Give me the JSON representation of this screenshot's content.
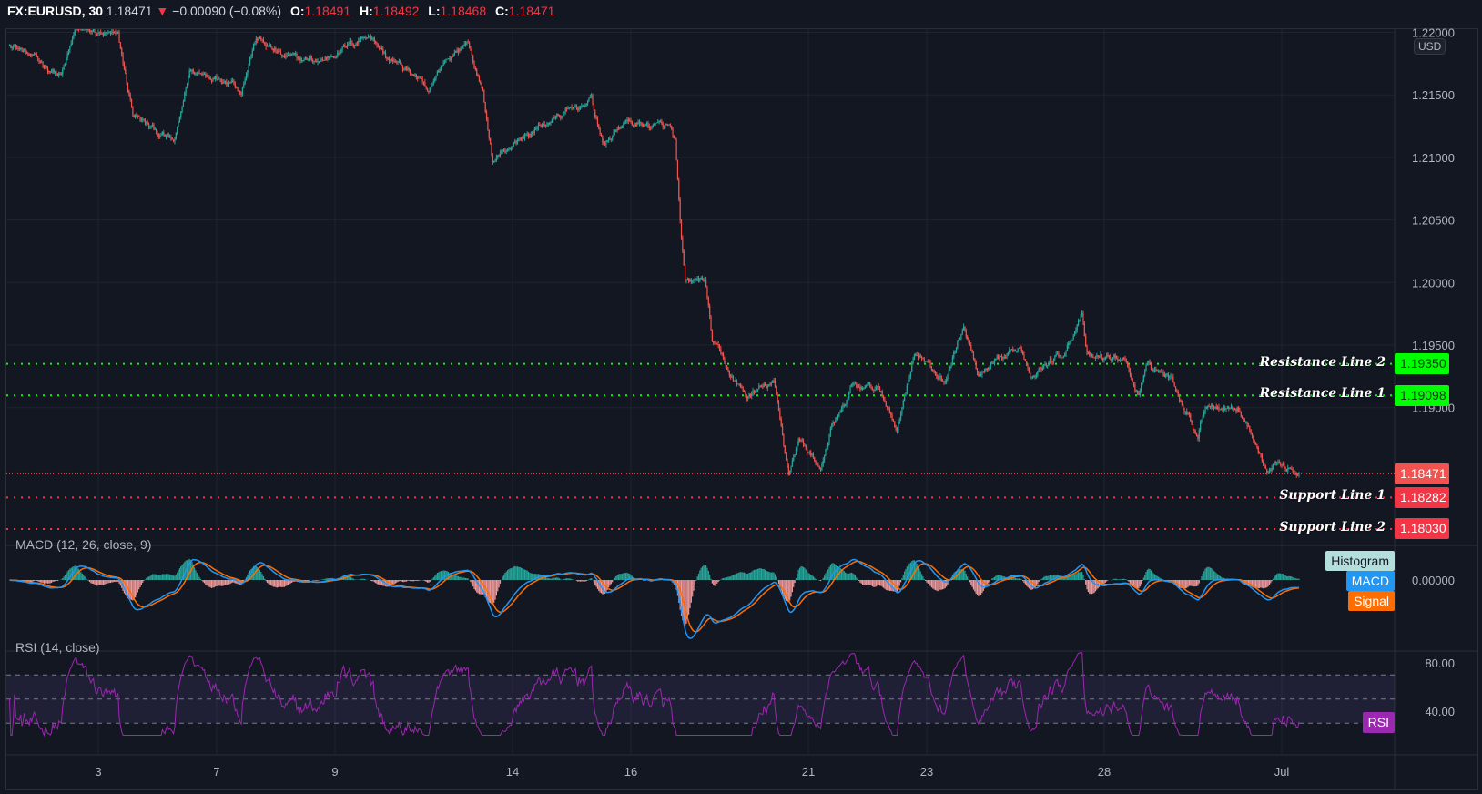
{
  "header": {
    "symbol": "FX:EURUSD, 30",
    "last": "1.18471",
    "change": "−0.00090 (−0.08%)",
    "open_label": "O:",
    "open": "1.18491",
    "high_label": "H:",
    "high": "1.18492",
    "low_label": "L:",
    "low": "1.18468",
    "close_label": "C:",
    "close": "1.18471",
    "direction_icon": "triangle-down-icon"
  },
  "price_axis": {
    "currency": "USD",
    "ticks": [
      "1.22000",
      "1.21500",
      "1.21000",
      "1.20500",
      "1.20000",
      "1.19500",
      "1.19000"
    ]
  },
  "levels": [
    {
      "label": "Resistance Line 2",
      "value": "1.19350",
      "color": "#00ff00",
      "text_color": "#0b3d0b"
    },
    {
      "label": "Resistance Line 1",
      "value": "1.19098",
      "color": "#00ff00",
      "text_color": "#0b3d0b"
    },
    {
      "label": "Support Line 1",
      "value": "1.18282",
      "color": "#f23645",
      "text_color": "#ffffff"
    },
    {
      "label": "Support Line 2",
      "value": "1.18030",
      "color": "#f23645",
      "text_color": "#ffffff"
    }
  ],
  "last_price_tag": {
    "value": "1.18471",
    "color": "#f05350"
  },
  "macd": {
    "title": "MACD (12, 26, close, 9)",
    "zero_label": "0.00000",
    "tags": [
      {
        "label": "Histogram",
        "color": "#b2dfdb",
        "text_color": "#131722"
      },
      {
        "label": "MACD",
        "color": "#2196f3",
        "text_color": "#ffffff"
      },
      {
        "label": "Signal",
        "color": "#ff6d00",
        "text_color": "#ffffff"
      }
    ]
  },
  "rsi": {
    "title": "RSI (14, close)",
    "ticks": [
      "80.00",
      "40.00"
    ],
    "tag": {
      "label": "RSI",
      "color": "#9c27b0",
      "text_color": "#ffffff"
    },
    "bands": [
      70,
      50,
      30
    ]
  },
  "time_axis": {
    "labels": [
      {
        "label": "3",
        "date": "06-03"
      },
      {
        "label": "7",
        "date": "06-07"
      },
      {
        "label": "9",
        "date": "06-09"
      },
      {
        "label": "14",
        "date": "06-14"
      },
      {
        "label": "16",
        "date": "06-16"
      },
      {
        "label": "21",
        "date": "06-21"
      },
      {
        "label": "23",
        "date": "06-23"
      },
      {
        "label": "28",
        "date": "06-28"
      },
      {
        "label": "Jul",
        "date": "07-01"
      }
    ]
  },
  "colors": {
    "up": "#26a69a",
    "down": "#ef5350",
    "background": "#131722",
    "grid": "#1f2330",
    "macd": "#2196f3",
    "signal": "#ff6d00",
    "rsi": "#9c27b0"
  },
  "chart_data": {
    "type": "candlestick",
    "interval": "30 min",
    "trading_days": [
      "06-01",
      "06-02",
      "06-03",
      "06-04",
      "06-07",
      "06-08",
      "06-09",
      "06-10",
      "06-11",
      "06-14",
      "06-15",
      "06-16",
      "06-17",
      "06-18",
      "06-21",
      "06-22",
      "06-23",
      "06-24",
      "06-25",
      "06-28",
      "06-29",
      "06-30",
      "07-01"
    ],
    "ylim": [
      1.1786,
      1.22
    ],
    "close_path": [
      [
        "06-01 12:00",
        1.2192
      ],
      [
        "06-02 09:00",
        1.2165
      ],
      [
        "06-02 15:00",
        1.2203
      ],
      [
        "06-03 08:00",
        1.2196
      ],
      [
        "06-03 14:00",
        1.2135
      ],
      [
        "06-03 21:00",
        1.2124
      ],
      [
        "06-04 07:00",
        1.2112
      ],
      [
        "06-04 13:00",
        1.2169
      ],
      [
        "06-07 06:00",
        1.2162
      ],
      [
        "06-07 10:00",
        1.2154
      ],
      [
        "06-07 16:00",
        1.2196
      ],
      [
        "06-08 03:00",
        1.218
      ],
      [
        "06-08 18:00",
        1.2177
      ],
      [
        "06-09 14:00",
        1.2199
      ],
      [
        "06-09 21:00",
        1.218
      ],
      [
        "06-10 09:00",
        1.2165
      ],
      [
        "06-10 14:00",
        1.215
      ],
      [
        "06-10 20:00",
        1.2177
      ],
      [
        "06-11 06:00",
        1.2192
      ],
      [
        "06-11 12:00",
        1.215
      ],
      [
        "06-11 16:00",
        1.2097
      ],
      [
        "06-11 23:00",
        1.2109
      ],
      [
        "06-14 14:00",
        1.2128
      ],
      [
        "06-15 08:00",
        1.2146
      ],
      [
        "06-15 13:00",
        1.2109
      ],
      [
        "06-15 21:00",
        1.2128
      ],
      [
        "06-16 16:00",
        1.2124
      ],
      [
        "06-16 18:00",
        1.2112
      ],
      [
        "06-16 20:00",
        1.2045
      ],
      [
        "06-16 22:00",
        1.1999
      ],
      [
        "06-17 06:00",
        1.2003
      ],
      [
        "06-17 09:00",
        1.1954
      ],
      [
        "06-17 17:00",
        1.1924
      ],
      [
        "06-17 23:00",
        1.1909
      ],
      [
        "06-18 10:00",
        1.192
      ],
      [
        "06-18 14:00",
        1.1871
      ],
      [
        "06-18 16:00",
        1.1848
      ],
      [
        "06-18 20:00",
        1.1875
      ],
      [
        "06-21 05:00",
        1.1852
      ],
      [
        "06-21 09:00",
        1.1882
      ],
      [
        "06-21 15:00",
        1.1901
      ],
      [
        "06-21 17:00",
        1.1916
      ],
      [
        "06-22 04:00",
        1.1916
      ],
      [
        "06-22 10:00",
        1.1893
      ],
      [
        "06-22 12:00",
        1.1882
      ],
      [
        "06-22 19:00",
        1.1946
      ],
      [
        "06-23 07:00",
        1.192
      ],
      [
        "06-23 15:00",
        1.1965
      ],
      [
        "06-23 21:00",
        1.1924
      ],
      [
        "06-24 14:00",
        1.1949
      ],
      [
        "06-24 18:00",
        1.1928
      ],
      [
        "06-25 07:00",
        1.1943
      ],
      [
        "06-25 15:00",
        1.1973
      ],
      [
        "06-25 17:00",
        1.194
      ],
      [
        "06-28 08:00",
        1.194
      ],
      [
        "06-28 14:00",
        1.1909
      ],
      [
        "06-28 18:00",
        1.1935
      ],
      [
        "06-29 03:00",
        1.1924
      ],
      [
        "06-29 14:00",
        1.1878
      ],
      [
        "06-29 17:00",
        1.1903
      ],
      [
        "06-30 06:00",
        1.19
      ],
      [
        "06-30 14:00",
        1.1871
      ],
      [
        "06-30 18:00",
        1.1848
      ],
      [
        "06-30 21:00",
        1.1856
      ],
      [
        "07-01 03:00",
        1.1852
      ],
      [
        "07-01 07:00",
        1.18471
      ]
    ],
    "indicators": {
      "macd": {
        "fast": 12,
        "slow": 26,
        "source": "close",
        "signal": 9
      },
      "rsi": {
        "length": 14,
        "source": "close",
        "ylim": [
          20,
          90
        ]
      }
    }
  }
}
